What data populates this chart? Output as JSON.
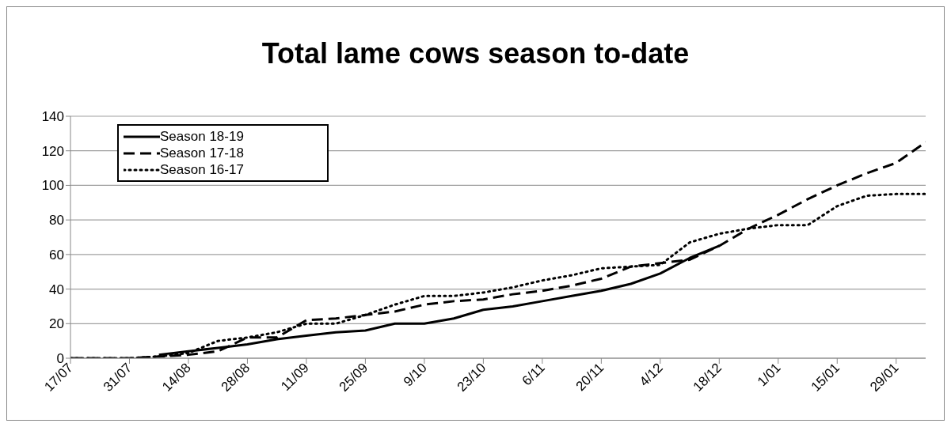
{
  "chart_data": {
    "type": "line",
    "title": "Total lame cows season to-date",
    "categories": [
      "17/07",
      null,
      "31/07",
      null,
      "14/08",
      null,
      "28/08",
      null,
      "11/09",
      null,
      "25/09",
      null,
      "9/10",
      null,
      "23/10",
      null,
      "6/11",
      null,
      "20/11",
      null,
      "4/12",
      null,
      "18/12",
      null,
      "1/01",
      null,
      "15/01",
      null,
      "29/01",
      null
    ],
    "series": [
      {
        "name": "Season 18-19",
        "color": "#000000",
        "line_style": "solid",
        "values": [
          null,
          null,
          null,
          2,
          4,
          6,
          8,
          11,
          13,
          15,
          16,
          20,
          20,
          23,
          28,
          30,
          33,
          36,
          39,
          43,
          49,
          58,
          65,
          null,
          null,
          null,
          null,
          null,
          null,
          null
        ]
      },
      {
        "name": "Season 17-18",
        "color": "#000000",
        "line_style": "dashed",
        "values": [
          0,
          0,
          0,
          1,
          2,
          4,
          12,
          12,
          22,
          23,
          25,
          27,
          31,
          33,
          34,
          37,
          39,
          42,
          46,
          53,
          55,
          57,
          65,
          75,
          83,
          92,
          100,
          107,
          113,
          125
        ]
      },
      {
        "name": "Season 16-17",
        "color": "#000000",
        "line_style": "dotted",
        "values": [
          0,
          0,
          0,
          1,
          3,
          10,
          12,
          15,
          20,
          20,
          25,
          31,
          36,
          36,
          38,
          41,
          45,
          48,
          52,
          53,
          54,
          67,
          72,
          75,
          77,
          77,
          88,
          94,
          95,
          95
        ]
      }
    ],
    "ylim": [
      0,
      140
    ],
    "yticks": [
      0,
      20,
      40,
      60,
      80,
      100,
      120,
      140
    ],
    "grid": "y",
    "legend": "top left",
    "marker": "none"
  }
}
